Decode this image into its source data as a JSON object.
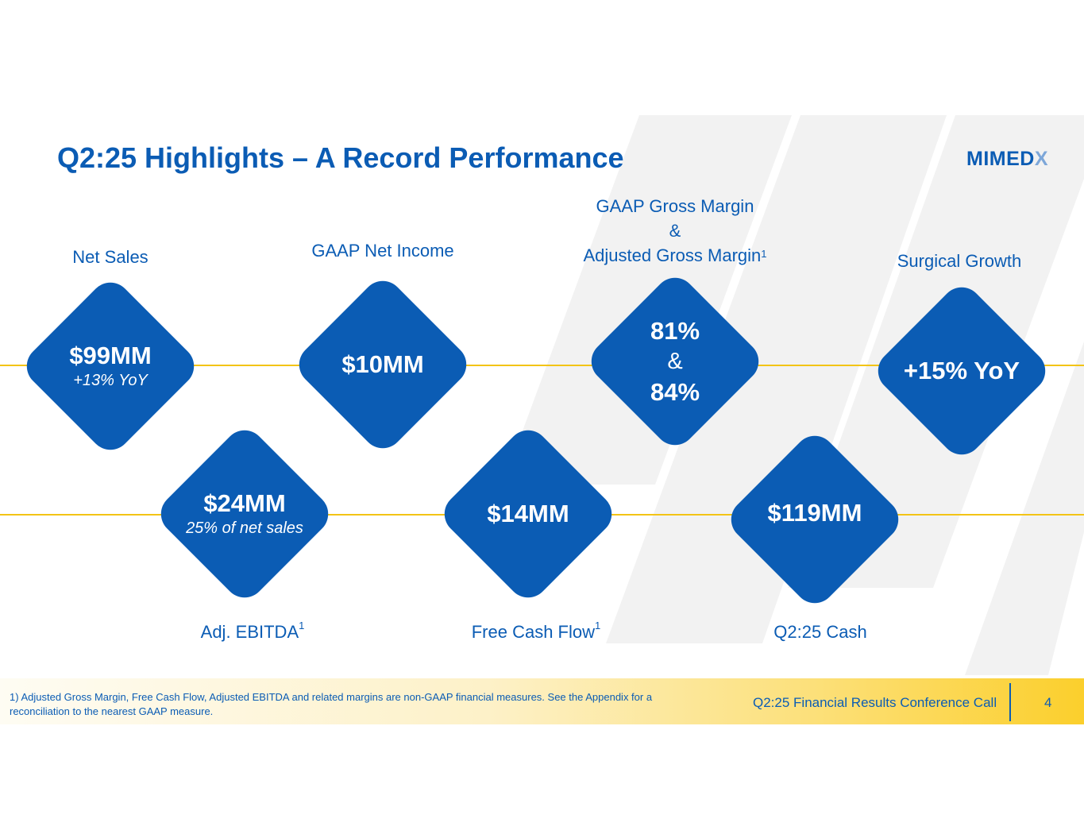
{
  "slide": {
    "title": "Q2:25 Highlights – A Record Performance",
    "logo_main": "MIMED",
    "logo_x": "X"
  },
  "metrics": {
    "net_sales": {
      "label": "Net Sales",
      "value": "$99MM",
      "sub": "+13% YoY"
    },
    "gaap_net_income": {
      "label": "GAAP Net Income",
      "value": "$10MM"
    },
    "gross_margin": {
      "label_line1": "GAAP Gross Margin",
      "label_amp": "&",
      "label_line3": "Adjusted Gross Margin",
      "label_sup": "1",
      "value1": "81%",
      "amp": "&",
      "value2": "84%"
    },
    "surgical_growth": {
      "label": "Surgical Growth",
      "value": "+15% YoY"
    },
    "adj_ebitda": {
      "label": "Adj. EBITDA",
      "label_sup": "1",
      "value": "$24MM",
      "sub": "25% of net sales"
    },
    "free_cash_flow": {
      "label": "Free Cash Flow",
      "label_sup": "1",
      "value": "$14MM"
    },
    "cash": {
      "label": "Q2:25 Cash",
      "value": "$119MM"
    }
  },
  "footer": {
    "footnote": "1) Adjusted Gross Margin, Free Cash Flow, Adjusted EBITDA and related margins are non-GAAP financial measures. See the Appendix for a reconciliation to the nearest GAAP measure.",
    "conference": "Q2:25 Financial Results Conference Call",
    "page_number": "4"
  },
  "colors": {
    "brand_blue": "#0b5cb4",
    "accent_yellow": "#f3c416",
    "stripe_gray": "#f2f2f2"
  }
}
